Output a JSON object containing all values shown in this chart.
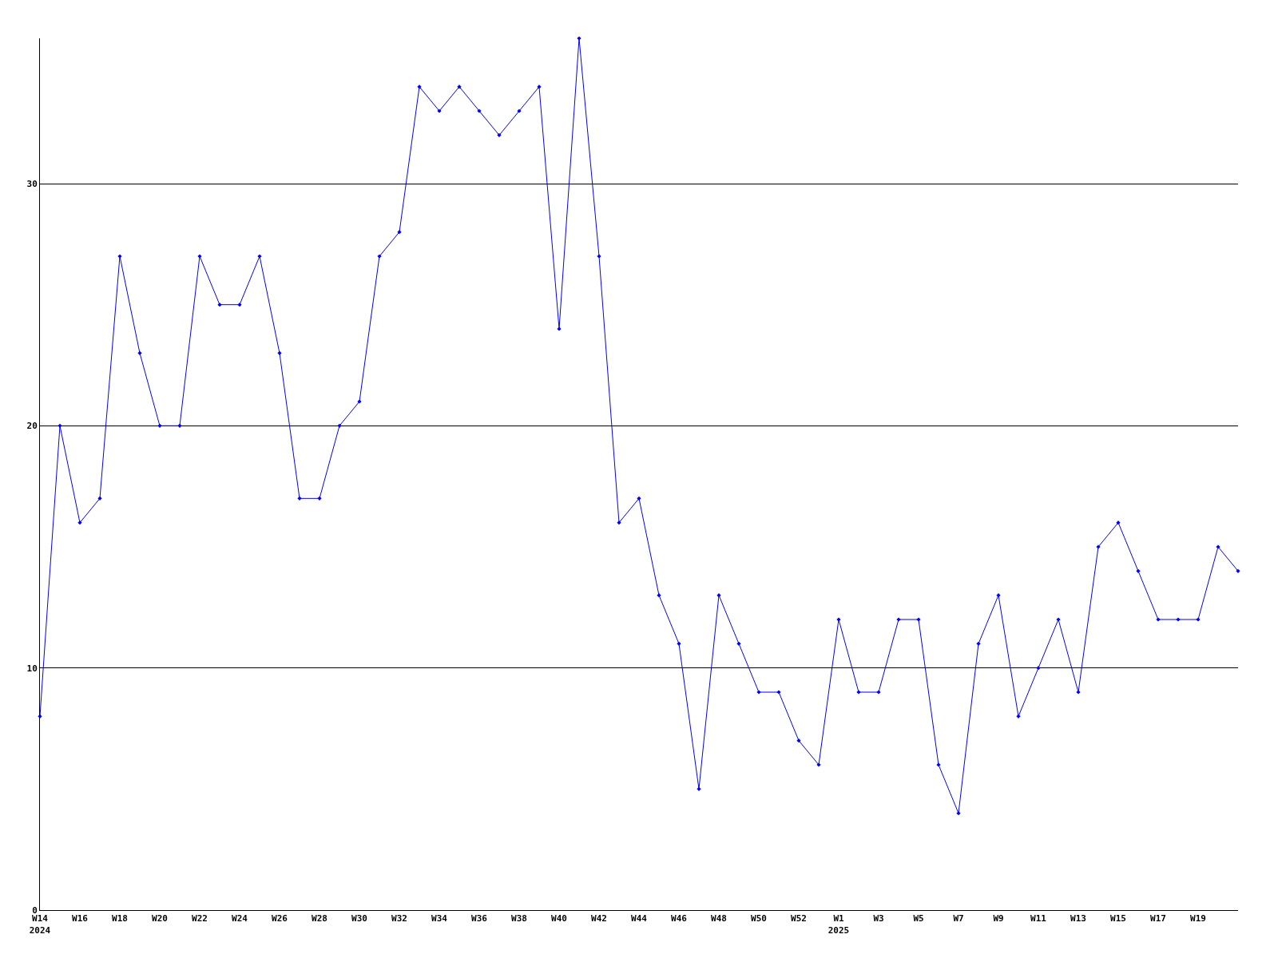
{
  "chart_data": {
    "type": "line",
    "categories": [
      "W14\n2024",
      null,
      "W16",
      null,
      "W18",
      null,
      "W20",
      null,
      "W22",
      null,
      "W24",
      null,
      "W26",
      null,
      "W28",
      null,
      "W30",
      null,
      "W32",
      null,
      "W34",
      null,
      "W36",
      null,
      "W38",
      null,
      "W40",
      null,
      "W42",
      null,
      "W44",
      null,
      "W46",
      null,
      "W48",
      null,
      "W50",
      null,
      "W52",
      null,
      "W1\n2025",
      null,
      "W3",
      null,
      "W5",
      null,
      "W7",
      null,
      "W9",
      null,
      "W11",
      null,
      "W13",
      null,
      "W15",
      null,
      "W17",
      null,
      "W19",
      null,
      null
    ],
    "series": [
      {
        "color": "#0000ff",
        "values": [
          8,
          20,
          16,
          17,
          27,
          23,
          20,
          20,
          27,
          25,
          25,
          27,
          23,
          17,
          17,
          20,
          21,
          27,
          28,
          34,
          33,
          34,
          33,
          32,
          33,
          34,
          24,
          36,
          27,
          16,
          17,
          13,
          11,
          5,
          13,
          11,
          9,
          9,
          7,
          6,
          12,
          9,
          9,
          12,
          12,
          6,
          4,
          11,
          13,
          8,
          10,
          12,
          9,
          15,
          16,
          14,
          12,
          12,
          12,
          15,
          14
        ]
      }
    ],
    "ylim": [
      0,
      36
    ],
    "yticks": [
      0,
      10,
      20,
      30
    ],
    "grid": "y",
    "marker": "diamond",
    "line_style": "solid",
    "legend": false
  }
}
